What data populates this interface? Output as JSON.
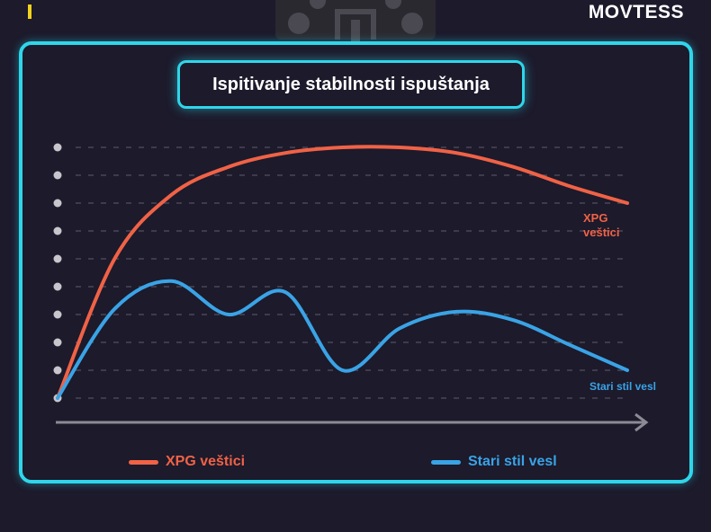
{
  "header": {
    "brand": "MOVTESS"
  },
  "colors": {
    "accent": "#2fd6ea",
    "series_xpg": "#f06246",
    "series_old": "#3aa3e6"
  },
  "chart_data": {
    "type": "line",
    "title": "Ispitivanje stabilnosti ispuštanja",
    "xlabel": "",
    "ylabel": "",
    "grid": true,
    "legend": "bottom",
    "x": [
      0,
      1,
      2,
      3,
      4,
      5,
      6,
      7,
      8,
      9,
      10
    ],
    "ylim": [
      0,
      9
    ],
    "series": [
      {
        "name": "XPG veštici",
        "color": "#f06246",
        "end_label": "XPG\nveštici",
        "values": [
          0,
          5.0,
          7.3,
          8.3,
          8.8,
          9.0,
          9.0,
          8.8,
          8.3,
          7.6,
          7.0
        ]
      },
      {
        "name": "Stari stil vesl",
        "color": "#3aa3e6",
        "end_label": "Stari stil vesl",
        "values": [
          0,
          3.2,
          4.2,
          3.0,
          3.8,
          1.0,
          2.5,
          3.1,
          2.8,
          1.9,
          1.0
        ]
      }
    ]
  }
}
